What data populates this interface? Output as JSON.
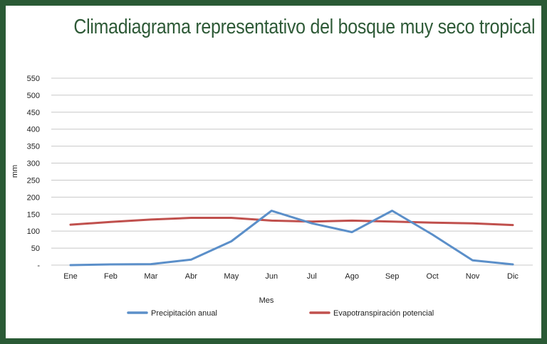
{
  "chart_data": {
    "type": "line",
    "title": "Climadiagrama representativo del bosque muy seco tropical",
    "xlabel": "Mes",
    "ylabel": "mm",
    "categories": [
      "Ene",
      "Feb",
      "Mar",
      "Abr",
      "May",
      "Jun",
      "Jul",
      "Ago",
      "Sep",
      "Oct",
      "Nov",
      "Dic"
    ],
    "y_ticks": [
      "-",
      "50",
      "100",
      "150",
      "200",
      "250",
      "300",
      "350",
      "400",
      "450",
      "500",
      "550"
    ],
    "ylim": [
      0,
      550
    ],
    "grid": true,
    "legend_position": "bottom",
    "series": [
      {
        "name": "Precipitación anual",
        "color": "#5b8fc9",
        "values": [
          0,
          2,
          3,
          16,
          70,
          160,
          123,
          97,
          160,
          90,
          14,
          2
        ]
      },
      {
        "name": "Evapotranspiración potencial",
        "color": "#c0504d",
        "values": [
          119,
          127,
          134,
          139,
          139,
          131,
          128,
          131,
          128,
          125,
          123,
          118
        ]
      }
    ]
  }
}
